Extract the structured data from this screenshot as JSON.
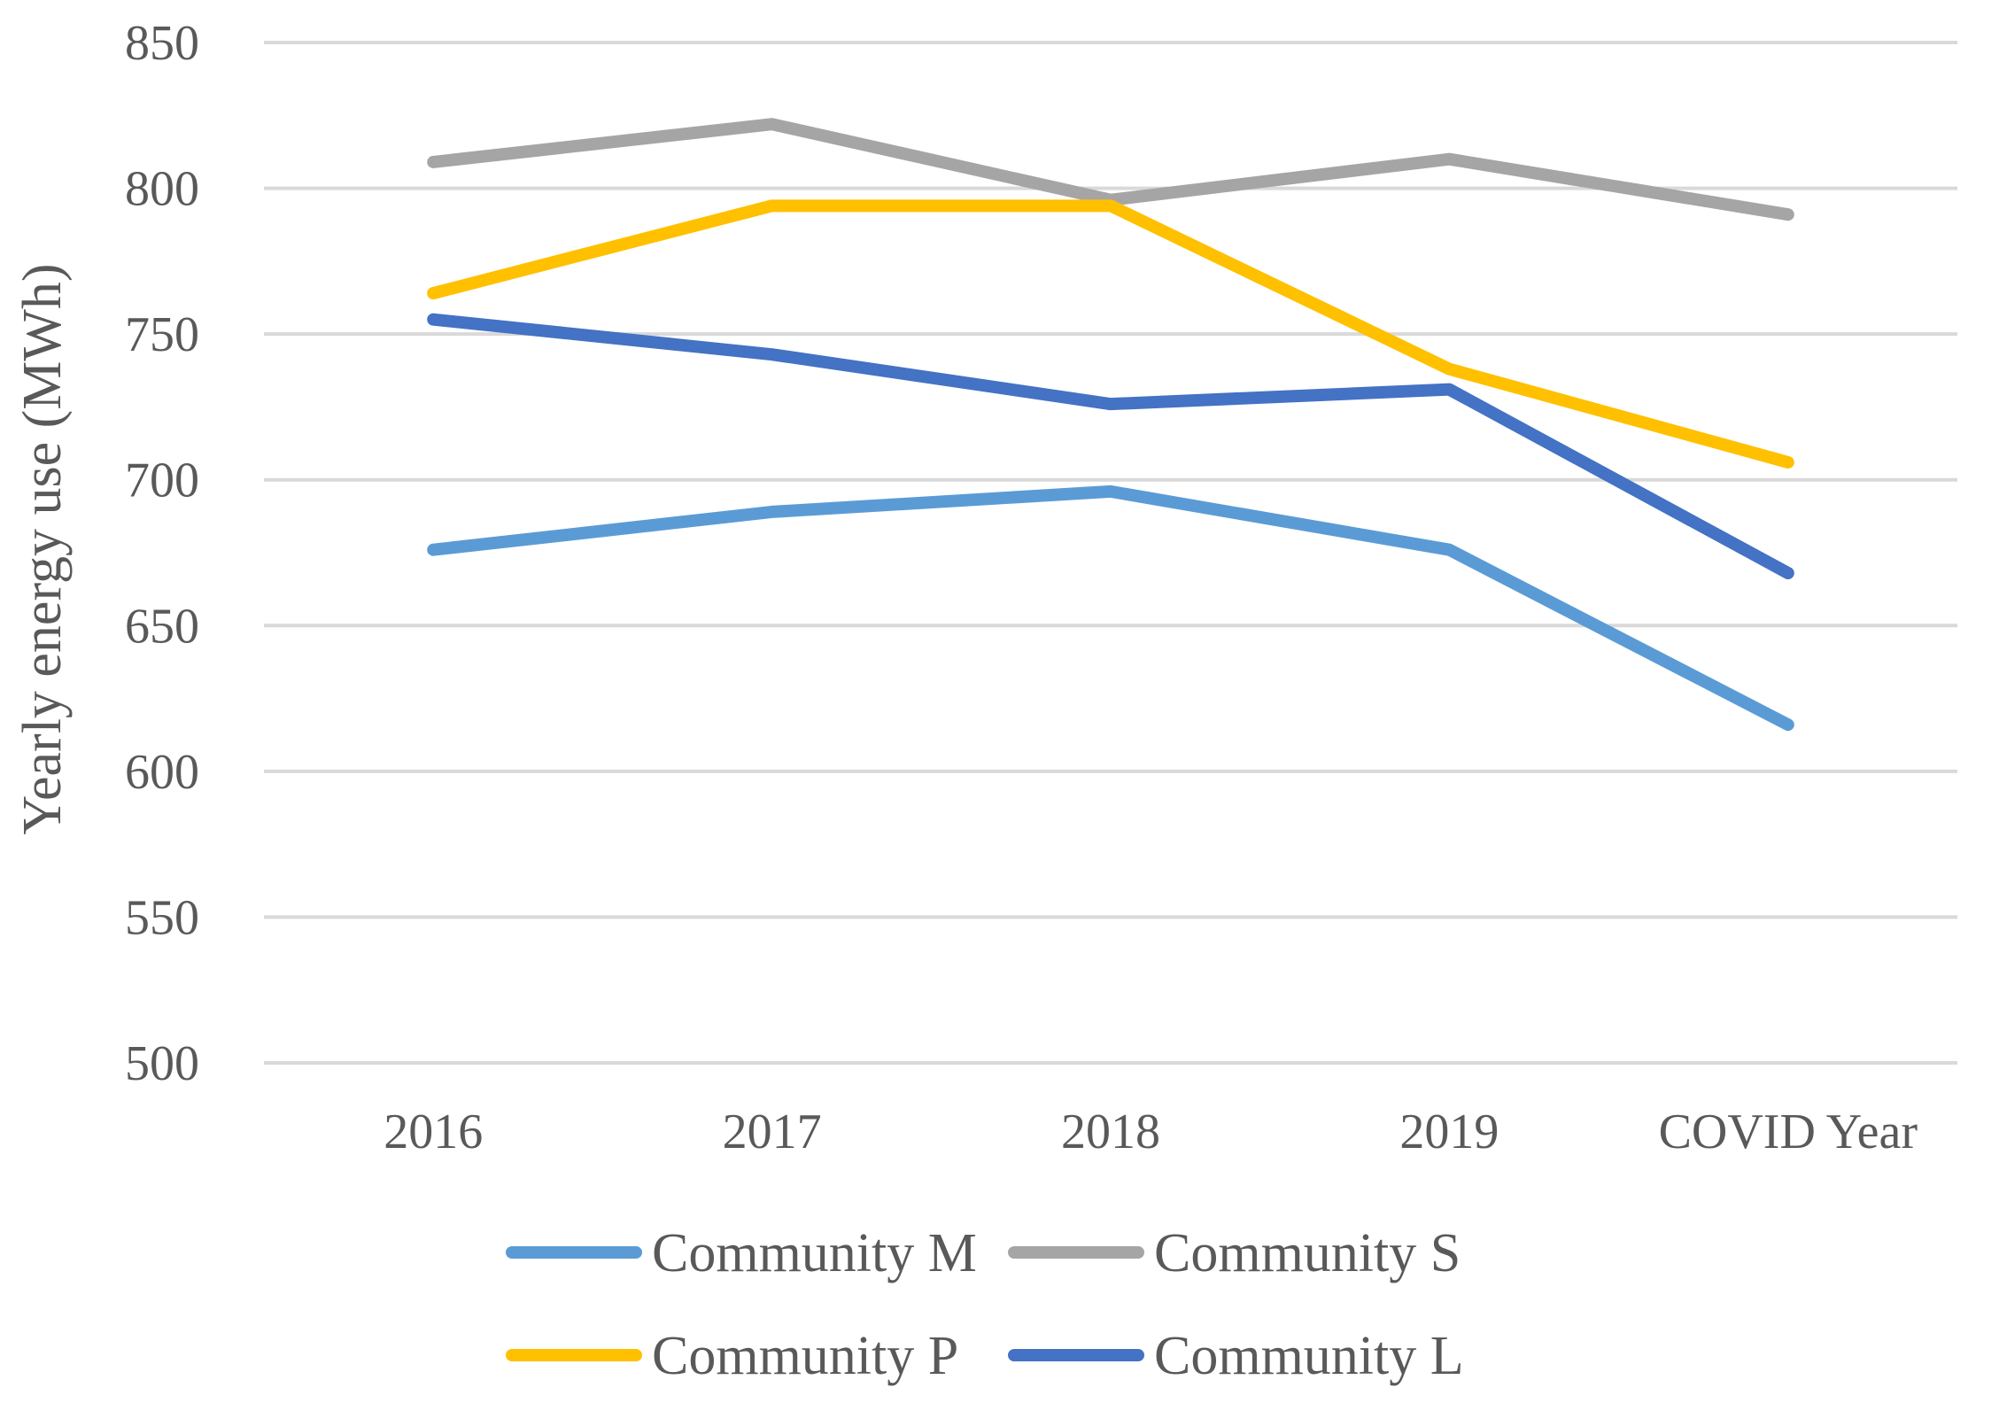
{
  "chart_data": {
    "type": "line",
    "title": "",
    "xlabel": "",
    "ylabel": "Yearly energy use (MWh)",
    "categories": [
      "2016",
      "2017",
      "2018",
      "2019",
      "COVID Year"
    ],
    "ylim": [
      500,
      850
    ],
    "yticks": [
      500,
      550,
      600,
      650,
      700,
      750,
      800,
      850
    ],
    "grid": true,
    "legend_position": "bottom",
    "series": [
      {
        "name": "Community M",
        "color": "#5b9bd5",
        "values": [
          676,
          689,
          696,
          676,
          616
        ]
      },
      {
        "name": "Community S",
        "color": "#a5a5a5",
        "values": [
          809,
          822,
          796,
          810,
          791
        ]
      },
      {
        "name": "Community P",
        "color": "#ffc000",
        "values": [
          764,
          794,
          794,
          738,
          706
        ]
      },
      {
        "name": "Community L",
        "color": "#4472c4",
        "values": [
          755,
          743,
          726,
          731,
          668
        ]
      }
    ]
  }
}
